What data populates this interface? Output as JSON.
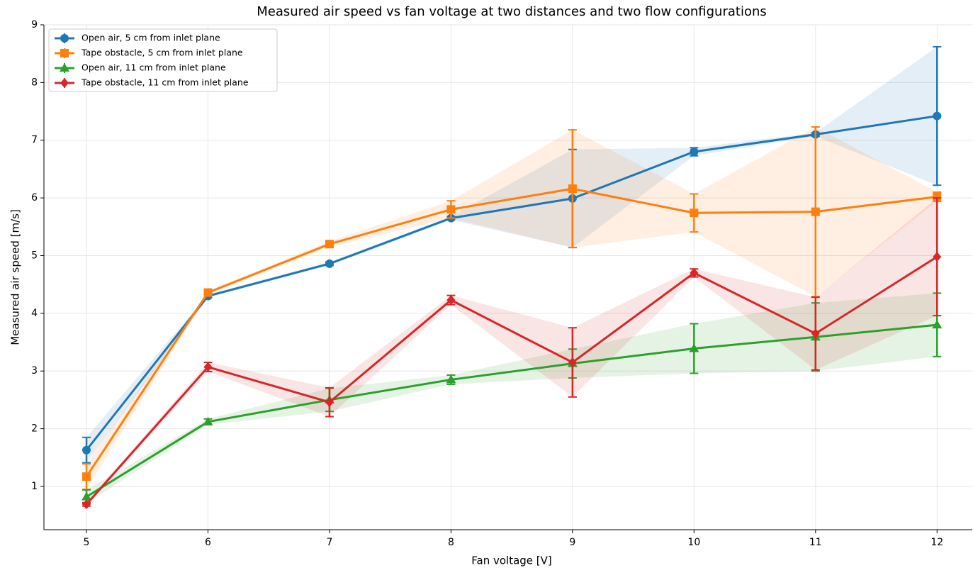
{
  "chart_data": {
    "type": "line",
    "title": "Measured air speed vs fan voltage at two distances and two flow configurations",
    "xlabel": "Fan voltage [V]",
    "ylabel": "Measured air speed [m/s]",
    "x": [
      5,
      6,
      7,
      8,
      9,
      10,
      11,
      12
    ],
    "series": [
      {
        "name": "Open air, 5 cm from inlet plane",
        "color": "#1f77b4",
        "marker": "circle",
        "values": [
          1.63,
          4.3,
          4.86,
          5.65,
          5.99,
          6.8,
          7.1,
          7.42
        ],
        "errors": [
          0.22,
          0.03,
          0.03,
          0.03,
          0.85,
          0.07,
          0.03,
          1.2
        ]
      },
      {
        "name": "Tape obstacle, 5 cm from inlet plane",
        "color": "#ff7f0e",
        "marker": "square",
        "values": [
          1.17,
          4.36,
          5.2,
          5.8,
          6.16,
          5.74,
          5.76,
          6.02
        ],
        "errors": [
          0.22,
          0.03,
          0.05,
          0.15,
          1.02,
          0.33,
          1.47,
          0.08
        ]
      },
      {
        "name": "Open air, 11 cm from inlet plane",
        "color": "#2ca02c",
        "marker": "triangle",
        "values": [
          0.82,
          2.12,
          2.5,
          2.85,
          3.13,
          3.39,
          3.59,
          3.8
        ],
        "errors": [
          0.12,
          0.05,
          0.2,
          0.08,
          0.25,
          0.43,
          0.59,
          0.55
        ]
      },
      {
        "name": "Tape obstacle, 11 cm from inlet plane",
        "color": "#d62728",
        "marker": "diamond",
        "values": [
          0.69,
          3.07,
          2.46,
          4.23,
          3.15,
          4.7,
          3.65,
          4.98
        ],
        "errors": [
          0.03,
          0.08,
          0.25,
          0.08,
          0.6,
          0.07,
          0.63,
          1.02
        ]
      }
    ],
    "xlim": [
      4.65,
      12.29
    ],
    "ylim": [
      0.25,
      9
    ],
    "xticks": [
      5,
      6,
      7,
      8,
      9,
      10,
      11,
      12
    ],
    "yticks": [
      1,
      2,
      3,
      4,
      5,
      6,
      7,
      8,
      9
    ],
    "grid": true,
    "legend": "upper left"
  }
}
